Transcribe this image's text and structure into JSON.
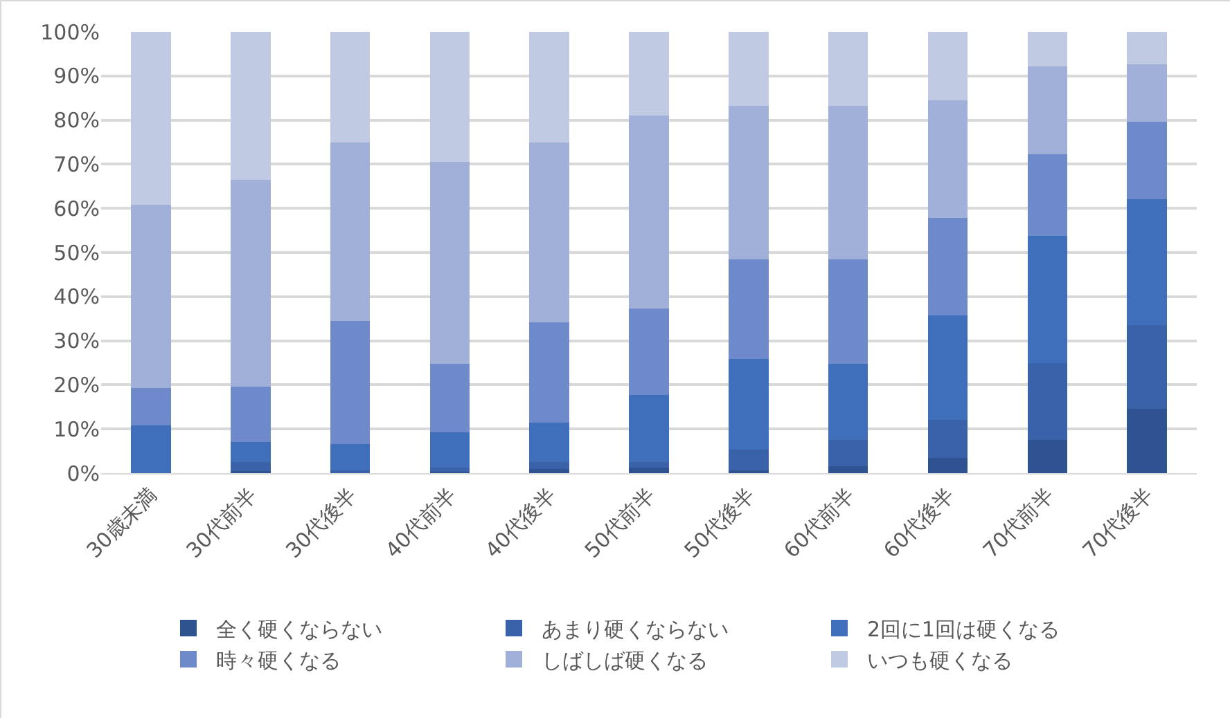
{
  "chart_data": {
    "type": "bar",
    "stacked": true,
    "categories": [
      "30歳未満",
      "30代前半",
      "30代後半",
      "40代前半",
      "40代後半",
      "50代前半",
      "50代後半",
      "60代前半",
      "60代後半",
      "70代前半",
      "70代後半"
    ],
    "series": [
      {
        "name": "全く硬くならない",
        "color": "#2f5290",
        "values": [
          0,
          0.5,
          0,
          0.3,
          0.9,
          1.3,
          0.6,
          1.6,
          3.5,
          7.6,
          14.6
        ]
      },
      {
        "name": "あまり硬くならない",
        "color": "#3a62a8",
        "values": [
          0,
          2.0,
          0.7,
          0.9,
          1.6,
          1.2,
          4.8,
          6.0,
          8.5,
          17.4,
          18.9
        ]
      },
      {
        "name": "2回に1回は硬くなる",
        "color": "#3f6fbb",
        "values": [
          10.8,
          4.5,
          5.9,
          8.0,
          8.9,
          15.2,
          20.5,
          17.1,
          23.8,
          28.8,
          28.5
        ]
      },
      {
        "name": "時々硬くなる",
        "color": "#6e8aca",
        "values": [
          8.5,
          12.6,
          27.9,
          15.5,
          22.8,
          19.6,
          22.5,
          23.7,
          22.1,
          18.4,
          17.7
        ]
      },
      {
        "name": "しばしば硬くなる",
        "color": "#a0b0d8",
        "values": [
          41.5,
          46.9,
          40.5,
          45.9,
          40.8,
          43.7,
          34.8,
          34.8,
          26.6,
          19.9,
          13.0
        ]
      },
      {
        "name": "いつも硬くなる",
        "color": "#c0cae3",
        "values": [
          39.2,
          33.5,
          25.0,
          29.4,
          25.0,
          19.0,
          16.8,
          16.8,
          15.5,
          7.9,
          7.3
        ]
      }
    ],
    "ylim": [
      0,
      100
    ],
    "yticks": [
      {
        "value": 0,
        "label": "0%"
      },
      {
        "value": 10,
        "label": "10%"
      },
      {
        "value": 20,
        "label": "20%"
      },
      {
        "value": 30,
        "label": "30%"
      },
      {
        "value": 40,
        "label": "40%"
      },
      {
        "value": 50,
        "label": "50%"
      },
      {
        "value": 60,
        "label": "60%"
      },
      {
        "value": 70,
        "label": "70%"
      },
      {
        "value": 80,
        "label": "80%"
      },
      {
        "value": 90,
        "label": "90%"
      },
      {
        "value": 100,
        "label": "100%"
      }
    ],
    "grid": "y",
    "legend": "bottom"
  }
}
